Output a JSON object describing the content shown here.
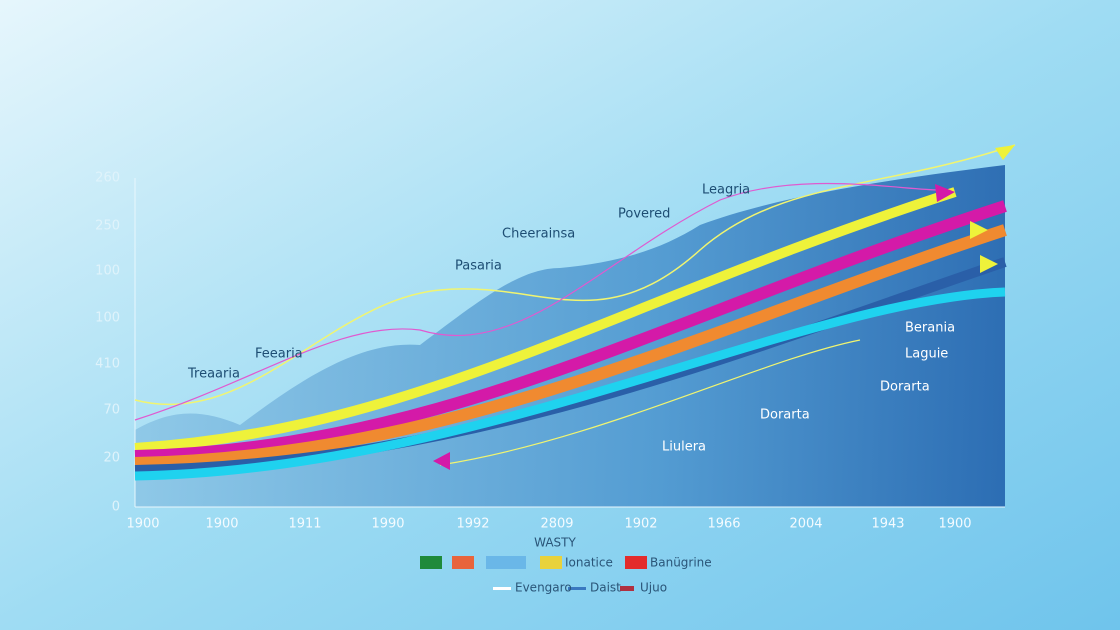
{
  "axis": {
    "y_labels": [
      "260",
      "250",
      "100",
      "100",
      "410",
      "70",
      "20",
      "0"
    ],
    "x_labels": [
      "1900",
      "1900",
      "1911",
      "1990",
      "1992",
      "2809",
      "1902",
      "1966",
      "2004",
      "1943",
      "1900"
    ],
    "x_title": "WASTY"
  },
  "annotations": [
    "Leagria",
    "Povered",
    "Cheerainsa",
    "Pasaria",
    "Feearia",
    "Treaaria",
    "Berania",
    "Laguie",
    "Dorarta",
    "Dorarta",
    "Liulera"
  ],
  "legend": {
    "row1": [
      "Ionatice",
      "Banügrine"
    ],
    "row2": [
      "Evengaro",
      "Daist",
      "Ujuo"
    ]
  }
}
